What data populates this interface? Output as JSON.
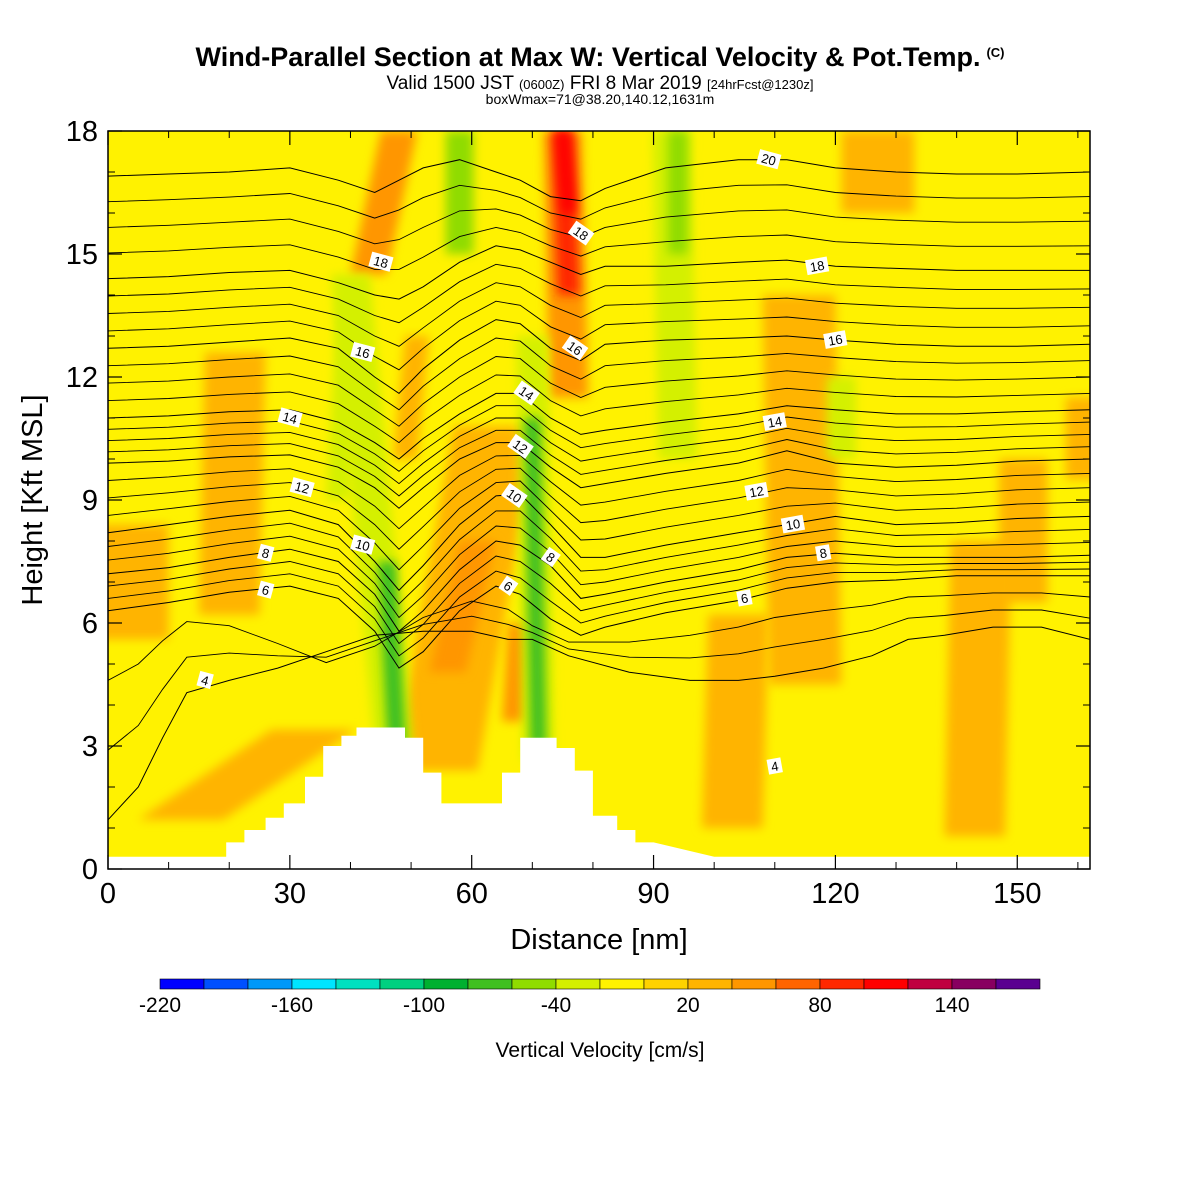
{
  "title": {
    "main": "Wind-Parallel Section at Max W: Vertical Velocity & Pot.Temp.",
    "mark": "(C)",
    "valid_prefix": "Valid 1500 JST",
    "valid_z": "(0600Z)",
    "valid_date": "FRI 8 Mar 2019",
    "valid_fcst": "[24hrFcst@1230z]",
    "box": "boxWmax=71@38.20,140.12,1631m"
  },
  "colorbar": {
    "label": "Vertical Velocity [cm/s]",
    "tick_labels": [
      "-220",
      "-160",
      "-100",
      "-40",
      "20",
      "80",
      "140"
    ],
    "tick_values": [
      -220,
      -160,
      -100,
      -40,
      20,
      80,
      140
    ],
    "levels": [
      -220,
      -200,
      -180,
      -160,
      -140,
      -120,
      -100,
      -80,
      -60,
      -40,
      -20,
      0,
      20,
      40,
      60,
      80,
      100,
      120,
      140,
      160
    ],
    "colors": [
      "#0000ff",
      "#0050ff",
      "#0098f8",
      "#00e4ff",
      "#00e0c0",
      "#00d080",
      "#00b030",
      "#40c020",
      "#90dc00",
      "#d4f000",
      "#fff200",
      "#ffd200",
      "#ffb400",
      "#ff9600",
      "#ff6400",
      "#ff2800",
      "#ff0000",
      "#c00040",
      "#880060",
      "#5a0090"
    ]
  },
  "chart_data": {
    "type": "contour",
    "title": "Wind-Parallel Section at Max W: Vertical Velocity & Pot.Temp.",
    "xlabel": "Distance [nm]",
    "ylabel": "Height [Kft MSL]",
    "xlim": [
      0,
      162
    ],
    "ylim": [
      0,
      18
    ],
    "x_ticks": [
      0,
      30,
      60,
      90,
      120,
      150
    ],
    "y_ticks": [
      0,
      3,
      6,
      9,
      12,
      15,
      18
    ],
    "filled_field": "Vertical Velocity [cm/s]",
    "vertical_velocity_features": [
      {
        "x_center": 47,
        "y_range": [
          1.5,
          9
        ],
        "value": -80
      },
      {
        "x_center": 60,
        "y_range": [
          2,
          11
        ],
        "value": 40
      },
      {
        "x_center": 70,
        "y_range": [
          2,
          14
        ],
        "value": -80
      },
      {
        "x_center": 76,
        "y_range": [
          10,
          18
        ],
        "value": 100
      },
      {
        "x_center": 93,
        "y_range": [
          10,
          18
        ],
        "value": -40
      },
      {
        "x_center": 121,
        "y_range": [
          10,
          12
        ],
        "value": -30
      }
    ],
    "terrain_profile": {
      "x": [
        0,
        16,
        19.5,
        19.5,
        22.5,
        22.5,
        26,
        26,
        29,
        29,
        32.5,
        32.5,
        35.5,
        35.5,
        38.5,
        38.5,
        41,
        41,
        49,
        49,
        52,
        52,
        55,
        55,
        65,
        65,
        68,
        68,
        74,
        74,
        77,
        77,
        80,
        80,
        84,
        84,
        87,
        87,
        90,
        90,
        100,
        100,
        162
      ],
      "y": [
        0.3,
        0.3,
        0.3,
        0.65,
        0.65,
        0.95,
        0.95,
        1.25,
        1.25,
        1.6,
        1.6,
        2.25,
        2.25,
        3.0,
        3.0,
        3.25,
        3.25,
        3.45,
        3.45,
        3.2,
        3.2,
        2.35,
        2.35,
        1.6,
        1.6,
        2.35,
        2.35,
        3.2,
        3.2,
        2.95,
        2.95,
        2.4,
        2.4,
        1.3,
        1.3,
        0.95,
        0.95,
        0.65,
        0.65,
        0.65,
        0.3,
        0.3,
        0.3
      ]
    },
    "isentropes": [
      {
        "label": "4",
        "points": [
          [
            0,
            1.2
          ],
          [
            5,
            2.0
          ],
          [
            9,
            3.2
          ],
          [
            13,
            4.3
          ],
          [
            20,
            4.6
          ],
          [
            28,
            4.9
          ],
          [
            36,
            5.3
          ],
          [
            44,
            5.7
          ],
          [
            52,
            5.8
          ],
          [
            60,
            5.8
          ],
          [
            66,
            5.6
          ],
          [
            70,
            5.6
          ],
          [
            76,
            5.2
          ],
          [
            86,
            4.8
          ],
          [
            96,
            4.6
          ],
          [
            104,
            4.6
          ],
          [
            110,
            4.7
          ],
          [
            118,
            4.9
          ],
          [
            126,
            5.2
          ],
          [
            132,
            5.6
          ],
          [
            138,
            5.7
          ],
          [
            146,
            5.9
          ],
          [
            154,
            5.9
          ],
          [
            162,
            5.6
          ]
        ]
      },
      {
        "label": "6",
        "points": [
          [
            0,
            6.3
          ],
          [
            10,
            6.5
          ],
          [
            20,
            6.75
          ],
          [
            30,
            6.9
          ],
          [
            38,
            6.6
          ],
          [
            44,
            5.8
          ],
          [
            48,
            4.9
          ],
          [
            52,
            5.3
          ],
          [
            58,
            6.3
          ],
          [
            64,
            6.9
          ],
          [
            68,
            6.7
          ],
          [
            73,
            6.1
          ],
          [
            78,
            5.7
          ],
          [
            82,
            5.9
          ],
          [
            92,
            6.25
          ],
          [
            104,
            6.55
          ],
          [
            112,
            6.85
          ],
          [
            120,
            7.0
          ],
          [
            130,
            7.05
          ],
          [
            140,
            7.15
          ],
          [
            150,
            7.15
          ],
          [
            162,
            7.15
          ]
        ]
      },
      {
        "label": "8",
        "points": [
          [
            0,
            7.2
          ],
          [
            10,
            7.35
          ],
          [
            20,
            7.6
          ],
          [
            30,
            7.8
          ],
          [
            38,
            7.5
          ],
          [
            44,
            6.7
          ],
          [
            48,
            5.8
          ],
          [
            52,
            6.3
          ],
          [
            58,
            7.3
          ],
          [
            64,
            8.0
          ],
          [
            68,
            7.9
          ],
          [
            73,
            7.4
          ],
          [
            78,
            6.6
          ],
          [
            82,
            6.7
          ],
          [
            92,
            7.0
          ],
          [
            104,
            7.3
          ],
          [
            112,
            7.6
          ],
          [
            120,
            7.7
          ],
          [
            130,
            7.6
          ],
          [
            140,
            7.6
          ],
          [
            150,
            7.6
          ],
          [
            162,
            7.65
          ]
        ]
      },
      {
        "label": "10",
        "points": [
          [
            0,
            8.2
          ],
          [
            10,
            8.4
          ],
          [
            20,
            8.6
          ],
          [
            30,
            8.75
          ],
          [
            38,
            8.4
          ],
          [
            44,
            7.5
          ],
          [
            48,
            6.8
          ],
          [
            52,
            7.4
          ],
          [
            58,
            8.4
          ],
          [
            64,
            9.1
          ],
          [
            68,
            9.15
          ],
          [
            73,
            8.4
          ],
          [
            78,
            7.6
          ],
          [
            82,
            7.6
          ],
          [
            92,
            7.9
          ],
          [
            104,
            8.2
          ],
          [
            112,
            8.4
          ],
          [
            120,
            8.6
          ],
          [
            130,
            8.4
          ],
          [
            140,
            8.45
          ],
          [
            150,
            8.55
          ],
          [
            162,
            8.6
          ]
        ]
      },
      {
        "label": "12",
        "points": [
          [
            0,
            9.9
          ],
          [
            10,
            9.95
          ],
          [
            20,
            10.05
          ],
          [
            30,
            10.1
          ],
          [
            38,
            9.8
          ],
          [
            44,
            9.3
          ],
          [
            48,
            8.8
          ],
          [
            52,
            9.3
          ],
          [
            58,
            10.0
          ],
          [
            64,
            10.4
          ],
          [
            68,
            10.4
          ],
          [
            73,
            9.8
          ],
          [
            78,
            9.3
          ],
          [
            82,
            9.4
          ],
          [
            92,
            9.65
          ],
          [
            104,
            9.9
          ],
          [
            112,
            10.2
          ],
          [
            120,
            9.9
          ],
          [
            130,
            9.8
          ],
          [
            140,
            9.85
          ],
          [
            150,
            9.95
          ],
          [
            162,
            10.0
          ]
        ]
      },
      {
        "label": "14",
        "points": [
          [
            0,
            11.0
          ],
          [
            10,
            11.05
          ],
          [
            20,
            11.15
          ],
          [
            30,
            11.2
          ],
          [
            38,
            10.9
          ],
          [
            44,
            10.4
          ],
          [
            48,
            10.0
          ],
          [
            52,
            10.5
          ],
          [
            58,
            11.1
          ],
          [
            64,
            11.6
          ],
          [
            68,
            11.6
          ],
          [
            73,
            11.0
          ],
          [
            78,
            10.6
          ],
          [
            82,
            10.7
          ],
          [
            92,
            10.9
          ],
          [
            104,
            11.1
          ],
          [
            112,
            11.3
          ],
          [
            120,
            11.2
          ],
          [
            130,
            11.1
          ],
          [
            140,
            11.1
          ],
          [
            150,
            11.15
          ],
          [
            162,
            11.2
          ]
        ]
      },
      {
        "label": "16",
        "points": [
          [
            0,
            12.7
          ],
          [
            10,
            12.75
          ],
          [
            20,
            12.85
          ],
          [
            30,
            12.95
          ],
          [
            38,
            12.7
          ],
          [
            44,
            12.0
          ],
          [
            48,
            11.6
          ],
          [
            52,
            12.2
          ],
          [
            58,
            12.9
          ],
          [
            64,
            13.4
          ],
          [
            68,
            13.3
          ],
          [
            73,
            12.7
          ],
          [
            78,
            12.4
          ],
          [
            82,
            12.8
          ],
          [
            92,
            12.9
          ],
          [
            104,
            12.95
          ],
          [
            112,
            13.0
          ],
          [
            120,
            12.9
          ],
          [
            130,
            12.8
          ],
          [
            140,
            12.75
          ],
          [
            150,
            12.75
          ],
          [
            162,
            12.8
          ]
        ]
      },
      {
        "label": "18",
        "points": [
          [
            0,
            14.4
          ],
          [
            10,
            14.45
          ],
          [
            20,
            14.55
          ],
          [
            30,
            14.6
          ],
          [
            38,
            14.3
          ],
          [
            44,
            14.0
          ],
          [
            48,
            13.9
          ],
          [
            52,
            14.2
          ],
          [
            58,
            14.8
          ],
          [
            64,
            15.2
          ],
          [
            68,
            15.1
          ],
          [
            73,
            14.8
          ],
          [
            78,
            14.5
          ],
          [
            82,
            14.7
          ],
          [
            92,
            14.7
          ],
          [
            104,
            14.8
          ],
          [
            112,
            14.85
          ],
          [
            120,
            14.7
          ],
          [
            130,
            14.65
          ],
          [
            140,
            14.6
          ],
          [
            150,
            14.6
          ],
          [
            162,
            14.6
          ]
        ]
      },
      {
        "label": "20",
        "points": [
          [
            0,
            16.9
          ],
          [
            10,
            16.95
          ],
          [
            20,
            17.0
          ],
          [
            30,
            17.1
          ],
          [
            38,
            16.8
          ],
          [
            44,
            16.5
          ],
          [
            48,
            16.8
          ],
          [
            52,
            17.1
          ],
          [
            58,
            17.3
          ],
          [
            64,
            17.0
          ],
          [
            68,
            16.8
          ],
          [
            73,
            16.4
          ],
          [
            78,
            16.3
          ],
          [
            82,
            16.6
          ],
          [
            92,
            17.1
          ],
          [
            104,
            17.3
          ],
          [
            112,
            17.3
          ],
          [
            120,
            17.1
          ],
          [
            130,
            17.0
          ],
          [
            140,
            16.95
          ],
          [
            150,
            16.95
          ],
          [
            162,
            17.0
          ]
        ]
      }
    ]
  }
}
